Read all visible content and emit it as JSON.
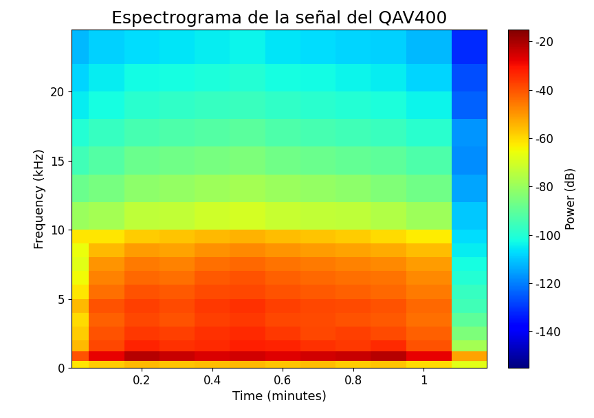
{
  "chart_data": {
    "type": "heatmap",
    "title": "Espectrograma de la señal del QAV400",
    "x_label": "Time (minutes)",
    "y_label": "Frequency (kHz)",
    "xlim": [
      0,
      1.18
    ],
    "ylim": [
      0,
      24.5
    ],
    "xticks": [
      0.2,
      0.4,
      0.6,
      0.8,
      1
    ],
    "yticks": [
      0,
      5,
      10,
      15,
      20
    ],
    "time_edges": [
      0,
      0.05,
      0.15,
      0.25,
      0.35,
      0.45,
      0.55,
      0.65,
      0.75,
      0.85,
      0.95,
      1.08,
      1.18
    ],
    "frequency_edges": [
      0,
      0.5,
      1.2,
      2,
      3,
      4,
      5,
      6,
      7,
      8,
      9,
      10,
      12,
      14,
      16,
      18,
      20,
      22,
      24.5
    ],
    "cells": [
      [
        -62,
        -58,
        -55,
        -57,
        -56,
        -55,
        -57,
        -56,
        -58,
        -57,
        -60,
        -68
      ],
      [
        -40,
        -28,
        -22,
        -24,
        -26,
        -25,
        -27,
        -25,
        -24,
        -22,
        -28,
        -52
      ],
      [
        -55,
        -38,
        -33,
        -35,
        -34,
        -32,
        -33,
        -35,
        -36,
        -34,
        -40,
        -78
      ],
      [
        -58,
        -40,
        -36,
        -37,
        -35,
        -34,
        -36,
        -38,
        -37,
        -39,
        -42,
        -85
      ],
      [
        -60,
        -42,
        -38,
        -40,
        -37,
        -36,
        -38,
        -39,
        -40,
        -41,
        -44,
        -90
      ],
      [
        -55,
        -40,
        -37,
        -39,
        -36,
        -35,
        -37,
        -38,
        -39,
        -40,
        -43,
        -95
      ],
      [
        -62,
        -44,
        -40,
        -41,
        -39,
        -38,
        -40,
        -41,
        -42,
        -43,
        -46,
        -97
      ],
      [
        -65,
        -47,
        -43,
        -44,
        -41,
        -40,
        -42,
        -43,
        -44,
        -45,
        -48,
        -100
      ],
      [
        -68,
        -50,
        -46,
        -47,
        -44,
        -43,
        -45,
        -46,
        -47,
        -48,
        -51,
        -102
      ],
      [
        -66,
        -55,
        -51,
        -52,
        -49,
        -48,
        -50,
        -51,
        -52,
        -53,
        -56,
        -105
      ],
      [
        -62,
        -62,
        -58,
        -57,
        -55,
        -54,
        -56,
        -57,
        -58,
        -60,
        -63,
        -107
      ],
      [
        -80,
        -78,
        -74,
        -73,
        -71,
        -70,
        -72,
        -73,
        -74,
        -76,
        -79,
        -110
      ],
      [
        -88,
        -86,
        -82,
        -81,
        -79,
        -78,
        -80,
        -81,
        -82,
        -84,
        -87,
        -115
      ],
      [
        -95,
        -92,
        -88,
        -87,
        -86,
        -85,
        -87,
        -88,
        -89,
        -90,
        -93,
        -118
      ],
      [
        -100,
        -97,
        -94,
        -93,
        -92,
        -91,
        -93,
        -94,
        -95,
        -96,
        -99,
        -117
      ],
      [
        -105,
        -102,
        -99,
        -98,
        -97,
        -96,
        -98,
        -99,
        -100,
        -101,
        -104,
        -124
      ],
      [
        -108,
        -105,
        -103,
        -102,
        -101,
        -100,
        -102,
        -103,
        -104,
        -105,
        -108,
        -127
      ],
      [
        -112,
        -109,
        -107,
        -106,
        -105,
        -104,
        -106,
        -107,
        -108,
        -109,
        -112,
        -132
      ]
    ],
    "color_range": [
      -155,
      -15
    ],
    "colorbar_ticks": [
      -140,
      -120,
      -100,
      -80,
      -60,
      -40,
      -20
    ],
    "colorbar_label": "Power (dB)"
  }
}
